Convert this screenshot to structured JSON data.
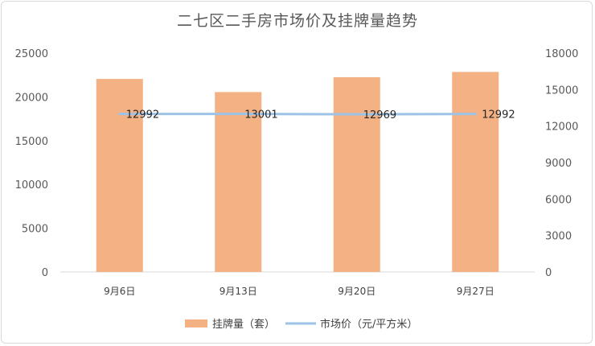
{
  "chart_data": {
    "type": "bar+line",
    "title": "二七区二手房市场价及挂牌量趋势",
    "categories": [
      "9月6日",
      "9月13日",
      "9月20日",
      "9月27日"
    ],
    "series": [
      {
        "name": "挂牌量（套）",
        "type": "bar",
        "axis": "left",
        "values": [
          22050,
          20550,
          22250,
          22850
        ],
        "color": "#f4b183"
      },
      {
        "name": "市场价（元/平方米）",
        "type": "line",
        "axis": "right",
        "values": [
          12992,
          13001,
          12969,
          12992
        ],
        "color": "#9dc3e6"
      }
    ],
    "left_axis": {
      "ylim": [
        0,
        25000
      ],
      "ticks": [
        0,
        5000,
        10000,
        15000,
        20000,
        25000
      ]
    },
    "right_axis": {
      "ylim": [
        0,
        18000
      ],
      "ticks": [
        0,
        3000,
        6000,
        9000,
        12000,
        15000,
        18000
      ]
    },
    "data_labels": [
      "12992",
      "13001",
      "12969",
      "12992"
    ],
    "legend": "bottom",
    "grid": false
  }
}
